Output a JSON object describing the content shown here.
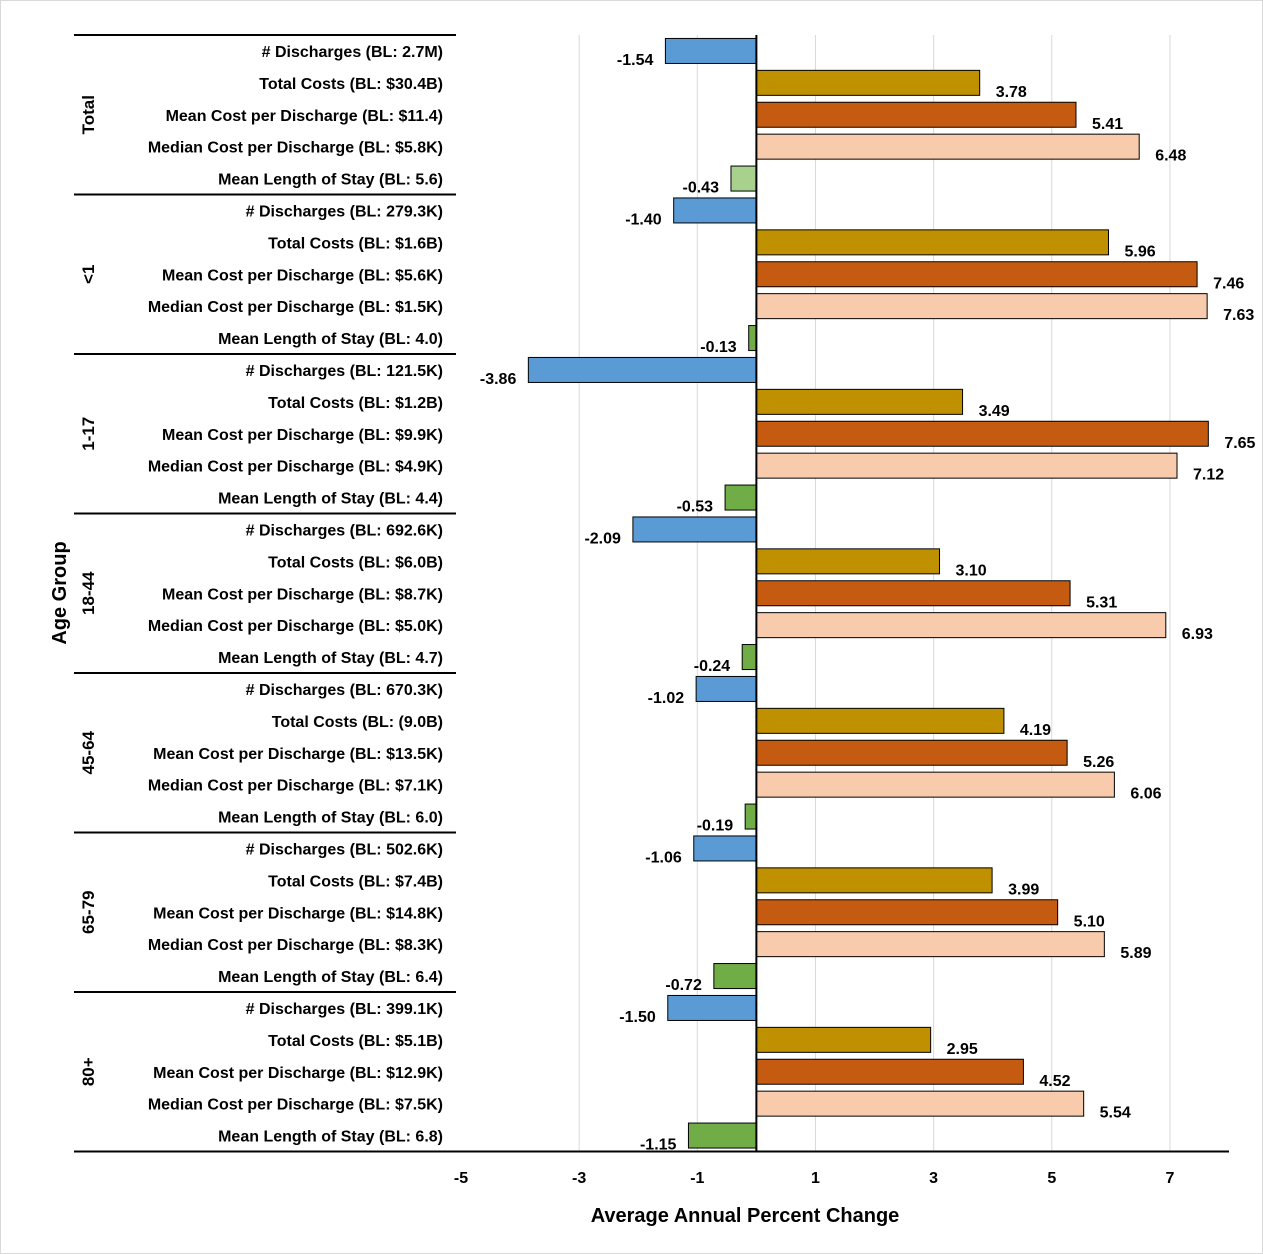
{
  "chart_data": {
    "type": "bar",
    "orientation": "horizontal",
    "ylabel": "Age Group",
    "xlabel": "Average Annual Percent Change",
    "xlim": [
      -5,
      8
    ],
    "xticks": [
      -5,
      -3,
      -1,
      1,
      3,
      5,
      7
    ],
    "grid": true,
    "metric_colors": [
      "#5b9bd5",
      "#bf9000",
      "#c55a11",
      "#f8cbad",
      "#70ad47"
    ],
    "groups": [
      {
        "name": "Total",
        "bars": [
          {
            "label": "# Discharges (BL: 2.7M)",
            "value": -1.54,
            "value_label": "-1.54"
          },
          {
            "label": "Total Costs (BL: $30.4B)",
            "value": 3.78,
            "value_label": "3.78"
          },
          {
            "label": "Mean Cost per Discharge (BL: $11.4)",
            "value": 5.41,
            "value_label": "5.41"
          },
          {
            "label": "Median Cost per Discharge (BL: $5.8K)",
            "value": 6.48,
            "value_label": "6.48"
          },
          {
            "label": "Mean Length of Stay (BL: 5.6)",
            "value": -0.43,
            "value_label": "-0.43",
            "color": "#a9d18e"
          }
        ]
      },
      {
        "name": "<1",
        "bars": [
          {
            "label": "# Discharges (BL: 279.3K)",
            "value": -1.4,
            "value_label": "-1.40"
          },
          {
            "label": "Total Costs (BL: $1.6B)",
            "value": 5.96,
            "value_label": "5.96"
          },
          {
            "label": "Mean Cost per Discharge (BL: $5.6K)",
            "value": 7.46,
            "value_label": "7.46"
          },
          {
            "label": "Median Cost per Discharge (BL: $1.5K)",
            "value": 7.63,
            "value_label": "7.63"
          },
          {
            "label": "Mean Length of Stay (BL: 4.0)",
            "value": -0.13,
            "value_label": "-0.13"
          }
        ]
      },
      {
        "name": "1-17",
        "bars": [
          {
            "label": "# Discharges (BL: 121.5K)",
            "value": -3.86,
            "value_label": "-3.86"
          },
          {
            "label": "Total Costs (BL: $1.2B)",
            "value": 3.49,
            "value_label": "3.49"
          },
          {
            "label": "Mean Cost per Discharge (BL: $9.9K)",
            "value": 7.65,
            "value_label": "7.65"
          },
          {
            "label": "Median Cost per Discharge (BL: $4.9K)",
            "value": 7.12,
            "value_label": "7.12"
          },
          {
            "label": "Mean Length of Stay (BL: 4.4)",
            "value": -0.53,
            "value_label": "-0.53"
          }
        ]
      },
      {
        "name": "18-44",
        "bars": [
          {
            "label": "# Discharges (BL: 692.6K)",
            "value": -2.09,
            "value_label": "-2.09"
          },
          {
            "label": "Total Costs (BL: $6.0B)",
            "value": 3.1,
            "value_label": "3.10"
          },
          {
            "label": "Mean Cost per Discharge (BL: $8.7K)",
            "value": 5.31,
            "value_label": "5.31"
          },
          {
            "label": "Median Cost per Discharge (BL: $5.0K)",
            "value": 6.93,
            "value_label": "6.93"
          },
          {
            "label": "Mean Length of Stay (BL: 4.7)",
            "value": -0.24,
            "value_label": "-0.24"
          }
        ]
      },
      {
        "name": "45-64",
        "bars": [
          {
            "label": "# Discharges (BL: 670.3K)",
            "value": -1.02,
            "value_label": "-1.02"
          },
          {
            "label": "Total Costs (BL: (9.0B)",
            "value": 4.19,
            "value_label": "4.19"
          },
          {
            "label": "Mean Cost per Discharge (BL: $13.5K)",
            "value": 5.26,
            "value_label": "5.26"
          },
          {
            "label": "Median Cost per Discharge (BL: $7.1K)",
            "value": 6.06,
            "value_label": "6.06"
          },
          {
            "label": "Mean Length of Stay (BL: 6.0)",
            "value": -0.19,
            "value_label": "-0.19"
          }
        ]
      },
      {
        "name": "65-79",
        "bars": [
          {
            "label": "# Discharges (BL: 502.6K)",
            "value": -1.06,
            "value_label": "-1.06"
          },
          {
            "label": "Total Costs (BL: $7.4B)",
            "value": 3.99,
            "value_label": "3.99"
          },
          {
            "label": "Mean Cost per Discharge (BL: $14.8K)",
            "value": 5.1,
            "value_label": "5.10"
          },
          {
            "label": "Median Cost per Discharge (BL: $8.3K)",
            "value": 5.89,
            "value_label": "5.89"
          },
          {
            "label": "Mean Length of Stay (BL: 6.4)",
            "value": -0.72,
            "value_label": "-0.72"
          }
        ]
      },
      {
        "name": "80+",
        "bars": [
          {
            "label": "# Discharges (BL: 399.1K)",
            "value": -1.5,
            "value_label": "-1.50"
          },
          {
            "label": "Total Costs (BL: $5.1B)",
            "value": 2.95,
            "value_label": "2.95"
          },
          {
            "label": "Mean Cost per Discharge (BL: $12.9K)",
            "value": 4.52,
            "value_label": "4.52"
          },
          {
            "label": "Median Cost per Discharge (BL: $7.5K)",
            "value": 5.54,
            "value_label": "5.54"
          },
          {
            "label": "Mean Length of Stay (BL: 6.8)",
            "value": -1.15,
            "value_label": "-1.15"
          }
        ]
      }
    ]
  }
}
